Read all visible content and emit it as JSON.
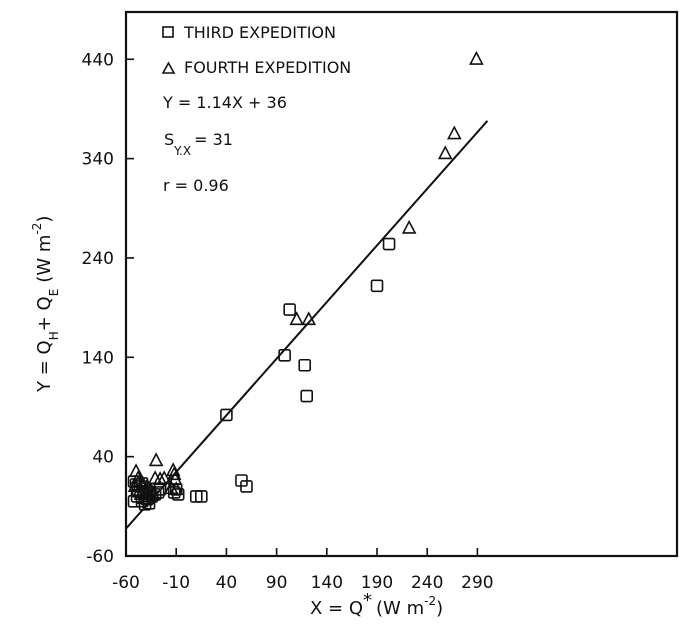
{
  "chart_data": {
    "type": "scatter",
    "title": "",
    "xlabel": {
      "prefix": "X = Q",
      "star": "*",
      "unit_open": "(W m",
      "unit_exp": "-2",
      "unit_close": ")"
    },
    "ylabel": {
      "prefix": "Y = Q",
      "sub1": "H",
      "plus": "+ Q",
      "sub2": "E",
      "unit_open": "(W m",
      "unit_exp": "-2",
      "unit_close": ")"
    },
    "xlim": [
      -60,
      300
    ],
    "ylim": [
      -60,
      500
    ],
    "x_ticks": [
      -60,
      -10,
      40,
      90,
      140,
      190,
      240,
      290
    ],
    "x_tick_labels": [
      "-60",
      "-10",
      "40",
      "90",
      "140",
      "190",
      "240",
      "290"
    ],
    "y_ticks": [
      -60,
      40,
      140,
      240,
      340,
      440
    ],
    "y_tick_labels": [
      "-60",
      "40",
      "140",
      "240",
      "340",
      "440"
    ],
    "grid": false,
    "legend_position": "top-left",
    "legend": [
      {
        "marker": "square",
        "label": "THIRD EXPEDITION"
      },
      {
        "marker": "triangle",
        "label": "FOURTH EXPEDITION"
      }
    ],
    "annotations": {
      "equation": "Y = 1.14X + 36",
      "syx_main": "S",
      "syx_sub": "Y.X",
      "syx_value": "= 31",
      "r": "r = 0.96"
    },
    "regression": {
      "slope": 1.14,
      "intercept": 36,
      "x_range": [
        -60,
        300
      ]
    },
    "series": [
      {
        "marker": "square",
        "points": [
          [
            -52,
            15
          ],
          [
            -50,
            12
          ],
          [
            -48,
            5
          ],
          [
            -46,
            10
          ],
          [
            -44,
            13
          ],
          [
            -42,
            3
          ],
          [
            -40,
            5
          ],
          [
            -38,
            -2
          ],
          [
            -36,
            4
          ],
          [
            -52,
            -5
          ],
          [
            -49,
            0
          ],
          [
            -44,
            -5
          ],
          [
            -41,
            -8
          ],
          [
            -39,
            -3
          ],
          [
            -37,
            -7
          ],
          [
            -34,
            0
          ],
          [
            -31,
            2
          ],
          [
            -28,
            4
          ],
          [
            -26,
            7
          ],
          [
            -12,
            4
          ],
          [
            -10,
            7
          ],
          [
            -8,
            2
          ],
          [
            10,
            0
          ],
          [
            15,
            0
          ],
          [
            40,
            82
          ],
          [
            55,
            16
          ],
          [
            60,
            10
          ],
          [
            98,
            142
          ],
          [
            103,
            188
          ],
          [
            118,
            132
          ],
          [
            120,
            101
          ],
          [
            190,
            212
          ],
          [
            202,
            254
          ]
        ]
      },
      {
        "marker": "triangle",
        "points": [
          [
            -51,
            10
          ],
          [
            -50,
            25
          ],
          [
            -48,
            18
          ],
          [
            -46,
            6
          ],
          [
            -45,
            2
          ],
          [
            -43,
            12
          ],
          [
            -42,
            -2
          ],
          [
            -40,
            4
          ],
          [
            -39,
            10
          ],
          [
            -37,
            0
          ],
          [
            -35,
            6
          ],
          [
            -33,
            2
          ],
          [
            -31,
            18
          ],
          [
            -30,
            36
          ],
          [
            -26,
            17
          ],
          [
            -22,
            18
          ],
          [
            -15,
            8
          ],
          [
            -13,
            26
          ],
          [
            -12,
            22
          ],
          [
            -11,
            17
          ],
          [
            -10,
            7
          ],
          [
            110,
            178
          ],
          [
            122,
            178
          ],
          [
            222,
            270
          ],
          [
            258,
            345
          ],
          [
            267,
            365
          ],
          [
            289,
            440
          ]
        ]
      }
    ]
  }
}
